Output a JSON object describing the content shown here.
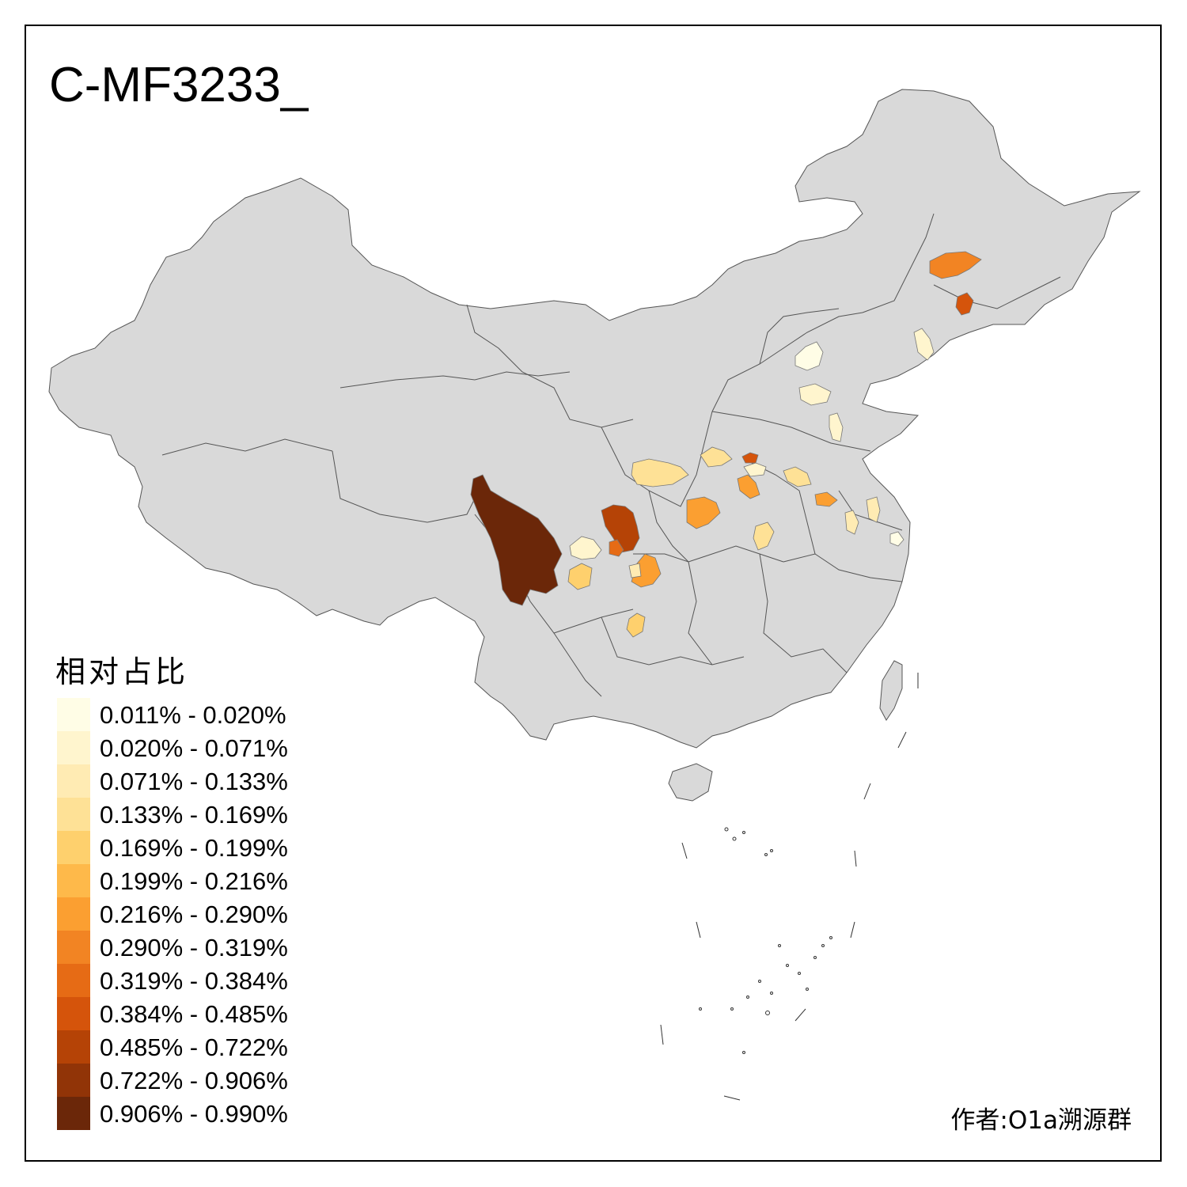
{
  "title": "C-MF3233_",
  "legend": {
    "title": "相对占比",
    "items": [
      {
        "label": "0.011% - 0.020%",
        "color": "#FFFDE6"
      },
      {
        "label": "0.020% - 0.071%",
        "color": "#FFF5CE"
      },
      {
        "label": "0.071% - 0.133%",
        "color": "#FFEBB3"
      },
      {
        "label": "0.133% - 0.169%",
        "color": "#FEE196"
      },
      {
        "label": "0.169% - 0.199%",
        "color": "#FED06D"
      },
      {
        "label": "0.199% - 0.216%",
        "color": "#FEB94A"
      },
      {
        "label": "0.216% - 0.290%",
        "color": "#FB9F31"
      },
      {
        "label": "0.290% - 0.319%",
        "color": "#F28423"
      },
      {
        "label": "0.319% - 0.384%",
        "color": "#E66B15"
      },
      {
        "label": "0.384% - 0.485%",
        "color": "#D5540B"
      },
      {
        "label": "0.485% - 0.722%",
        "color": "#B54306"
      },
      {
        "label": "0.722% - 0.906%",
        "color": "#913407"
      },
      {
        "label": "0.906% - 0.990%",
        "color": "#6B2709"
      }
    ]
  },
  "author": "作者:O1a溯源群",
  "colors": {
    "base_region": "#D9D9D9",
    "border": "#555555",
    "frame": "#000000",
    "background": "#FFFFFF"
  }
}
